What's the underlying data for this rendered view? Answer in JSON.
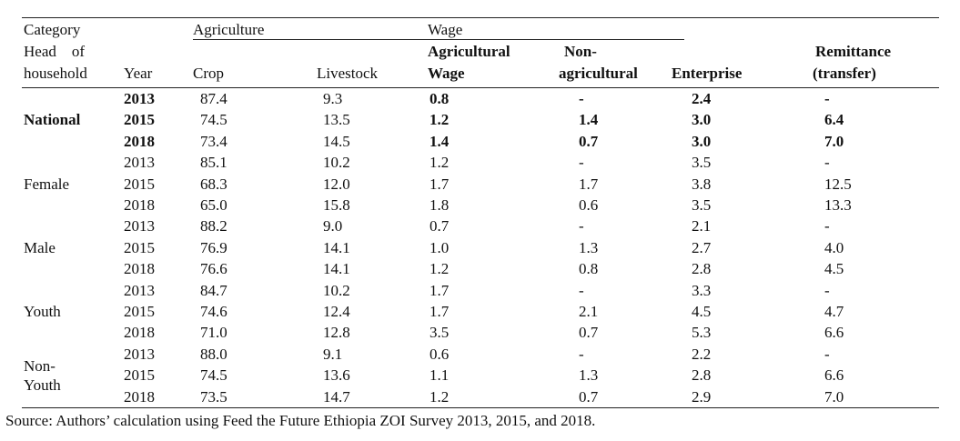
{
  "table": {
    "header": {
      "category": "Category",
      "head_of": "Head    of",
      "household": "household",
      "year": "Year",
      "agriculture": "Agriculture",
      "wage": "Wage",
      "crop": "Crop",
      "livestock": "Livestock",
      "agricultural_1": "Agricultural",
      "agricultural_2": "Wage",
      "non_ag_1": "Non-",
      "non_ag_2": "agricultural",
      "enterprise": "Enterprise",
      "remittance_1": "Remittance",
      "remittance_2": "(transfer)"
    },
    "groups": [
      {
        "name": "National",
        "bold": true,
        "rows": [
          {
            "year": "2013",
            "crop": "87.4",
            "livestock": "9.3",
            "ag_wage": "0.8",
            "nonag_wage": "-",
            "enterprise": "2.4",
            "remittance": "-"
          },
          {
            "year": "2015",
            "crop": "74.5",
            "livestock": "13.5",
            "ag_wage": "1.2",
            "nonag_wage": "1.4",
            "enterprise": "3.0",
            "remittance": "6.4"
          },
          {
            "year": "2018",
            "crop": "73.4",
            "livestock": "14.5",
            "ag_wage": "1.4",
            "nonag_wage": "0.7",
            "enterprise": "3.0",
            "remittance": "7.0"
          }
        ]
      },
      {
        "name": "Female",
        "bold": false,
        "rows": [
          {
            "year": "2013",
            "crop": "85.1",
            "livestock": "10.2",
            "ag_wage": "1.2",
            "nonag_wage": "-",
            "enterprise": "3.5",
            "remittance": "-"
          },
          {
            "year": "2015",
            "crop": "68.3",
            "livestock": "12.0",
            "ag_wage": "1.7",
            "nonag_wage": "1.7",
            "enterprise": "3.8",
            "remittance": "12.5"
          },
          {
            "year": "2018",
            "crop": "65.0",
            "livestock": "15.8",
            "ag_wage": "1.8",
            "nonag_wage": "0.6",
            "enterprise": "3.5",
            "remittance": "13.3"
          }
        ]
      },
      {
        "name": "Male",
        "bold": false,
        "rows": [
          {
            "year": "2013",
            "crop": "88.2",
            "livestock": "9.0",
            "ag_wage": "0.7",
            "nonag_wage": "-",
            "enterprise": "2.1",
            "remittance": "-"
          },
          {
            "year": "2015",
            "crop": "76.9",
            "livestock": "14.1",
            "ag_wage": "1.0",
            "nonag_wage": "1.3",
            "enterprise": "2.7",
            "remittance": "4.0"
          },
          {
            "year": "2018",
            "crop": "76.6",
            "livestock": "14.1",
            "ag_wage": "1.2",
            "nonag_wage": "0.8",
            "enterprise": "2.8",
            "remittance": "4.5"
          }
        ]
      },
      {
        "name": "Youth",
        "bold": false,
        "rows": [
          {
            "year": "2013",
            "crop": "84.7",
            "livestock": "10.2",
            "ag_wage": "1.7",
            "nonag_wage": "-",
            "enterprise": "3.3",
            "remittance": "-"
          },
          {
            "year": "2015",
            "crop": "74.6",
            "livestock": "12.4",
            "ag_wage": "1.7",
            "nonag_wage": "2.1",
            "enterprise": "4.5",
            "remittance": "4.7"
          },
          {
            "year": "2018",
            "crop": "71.0",
            "livestock": "12.8",
            "ag_wage": "3.5",
            "nonag_wage": "0.7",
            "enterprise": "5.3",
            "remittance": "6.6"
          }
        ]
      },
      {
        "name": "Non-\nYouth",
        "bold": false,
        "rows": [
          {
            "year": "2013",
            "crop": "88.0",
            "livestock": "9.1",
            "ag_wage": "0.6",
            "nonag_wage": "-",
            "enterprise": "2.2",
            "remittance": "-"
          },
          {
            "year": "2015",
            "crop": "74.5",
            "livestock": "13.6",
            "ag_wage": "1.1",
            "nonag_wage": "1.3",
            "enterprise": "2.8",
            "remittance": "6.6"
          },
          {
            "year": "2018",
            "crop": "73.5",
            "livestock": "14.7",
            "ag_wage": "1.2",
            "nonag_wage": "0.7",
            "enterprise": "2.9",
            "remittance": "7.0"
          }
        ]
      }
    ]
  },
  "source": "Source: Authors’ calculation using Feed the Future Ethiopia ZOI Survey 2013, 2015, and 2018."
}
